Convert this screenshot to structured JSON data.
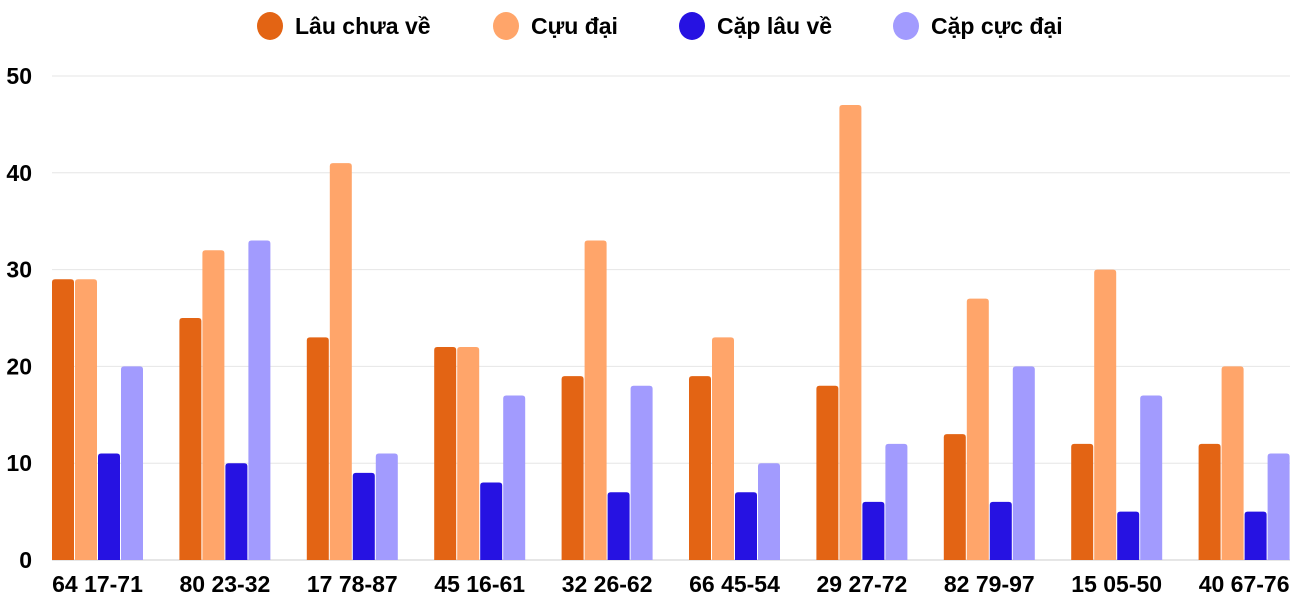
{
  "chart_data": {
    "type": "bar",
    "title": "",
    "xlabel": "",
    "ylabel": "",
    "ylim": [
      0,
      50
    ],
    "yticks": [
      0,
      10,
      20,
      30,
      40,
      50
    ],
    "grid": true,
    "legend_position": "top",
    "categories": [
      "64 17-71",
      "80 23-32",
      "17 78-87",
      "45 16-61",
      "32 26-62",
      "66 45-54",
      "29 27-72",
      "82 79-97",
      "15 05-50",
      "40 67-76"
    ],
    "series": [
      {
        "name": "Lâu chưa về",
        "color": "#E36414",
        "values": [
          29,
          25,
          23,
          22,
          19,
          19,
          18,
          13,
          12,
          12
        ]
      },
      {
        "name": "Cựu đại",
        "color": "#FFA56A",
        "values": [
          29,
          32,
          41,
          22,
          33,
          23,
          47,
          27,
          30,
          20
        ]
      },
      {
        "name": "Cặp lâu về",
        "color": "#2612E2",
        "values": [
          11,
          10,
          9,
          8,
          7,
          7,
          6,
          6,
          5,
          5
        ]
      },
      {
        "name": "Cặp cực đại",
        "color": "#A29BFE",
        "values": [
          20,
          33,
          11,
          17,
          18,
          10,
          12,
          20,
          17,
          11
        ]
      }
    ]
  }
}
